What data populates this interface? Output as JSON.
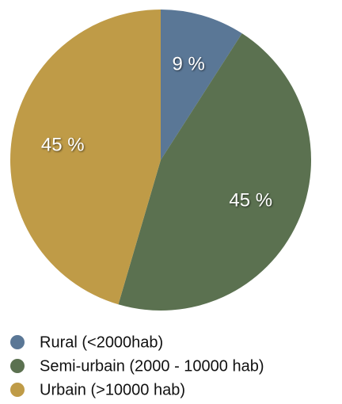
{
  "chart_data": {
    "type": "pie",
    "categories": [
      "Rural (<2000hab)",
      "Semi-urbain (2000 - 10000 hab)",
      "Urbain (>10000 hab)"
    ],
    "values": [
      9,
      45,
      45
    ],
    "value_labels": [
      "9 %",
      "45 %",
      "45 %"
    ],
    "colors": [
      "#5a7796",
      "#5b7150",
      "#bf9b47"
    ],
    "legend": "bottom"
  }
}
